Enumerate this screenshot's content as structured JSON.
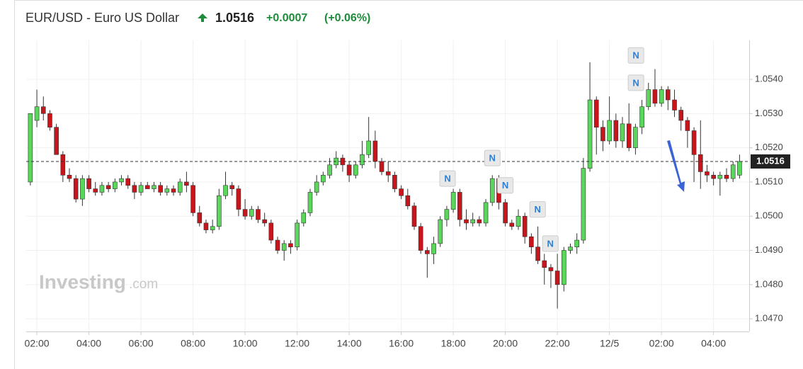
{
  "header": {
    "title": "EUR/USD - Euro US Dollar",
    "change": "+0.0007",
    "change_pct": "(+0.06%)"
  },
  "chart_data": {
    "type": "candlestick",
    "watermark": {
      "brand": "Investing",
      "suffix": ".com"
    },
    "last_price": 1.0516,
    "up_color": "#5ad65a",
    "down_color": "#c8151c",
    "xlim": [
      1.59,
      29.37
    ],
    "xticks": [
      {
        "value": 2,
        "label": "02:00"
      },
      {
        "value": 4,
        "label": "04:00"
      },
      {
        "value": 6,
        "label": "06:00"
      },
      {
        "value": 8,
        "label": "08:00"
      },
      {
        "value": 10,
        "label": "10:00"
      },
      {
        "value": 12,
        "label": "12:00"
      },
      {
        "value": 14,
        "label": "14:00"
      },
      {
        "value": 16,
        "label": "16:00"
      },
      {
        "value": 18,
        "label": "18:00"
      },
      {
        "value": 20,
        "label": "20:00"
      },
      {
        "value": 22,
        "label": "22:00"
      },
      {
        "value": 24,
        "label": "12/5"
      },
      {
        "value": 26,
        "label": "02:00"
      },
      {
        "value": 28,
        "label": "04:00"
      }
    ],
    "ylim": [
      1.04663,
      1.05514
    ],
    "yticks": [
      {
        "value": 1.047,
        "label": "1.0470"
      },
      {
        "value": 1.048,
        "label": "1.0480"
      },
      {
        "value": 1.049,
        "label": "1.0490"
      },
      {
        "value": 1.05,
        "label": "1.0500"
      },
      {
        "value": 1.051,
        "label": "1.0510"
      },
      {
        "value": 1.052,
        "label": "1.0520"
      },
      {
        "value": 1.053,
        "label": "1.0530"
      },
      {
        "value": 1.054,
        "label": "1.0540"
      }
    ],
    "grid": true,
    "news_markers": [
      {
        "label": "N",
        "x": 17.78,
        "y": 1.0511
      },
      {
        "label": "N",
        "x": 19.5,
        "y": 1.0517
      },
      {
        "label": "N",
        "x": 20.0,
        "y": 1.0509
      },
      {
        "label": "N",
        "x": 21.24,
        "y": 1.0502
      },
      {
        "label": "N",
        "x": 21.73,
        "y": 1.0492
      },
      {
        "label": "N",
        "x": 25.02,
        "y": 1.0547
      },
      {
        "label": "N",
        "x": 25.02,
        "y": 1.0539
      }
    ],
    "x": [
      1.75,
      2,
      2.25,
      2.5,
      2.75,
      3,
      3.25,
      3.5,
      3.75,
      4,
      4.25,
      4.5,
      4.75,
      5,
      5.25,
      5.5,
      5.75,
      6,
      6.25,
      6.5,
      6.75,
      7,
      7.25,
      7.5,
      7.75,
      8,
      8.25,
      8.5,
      8.75,
      9,
      9.25,
      9.5,
      9.75,
      10,
      10.25,
      10.5,
      10.75,
      11,
      11.25,
      11.5,
      11.75,
      12,
      12.25,
      12.5,
      12.75,
      13,
      13.25,
      13.5,
      13.75,
      14,
      14.25,
      14.5,
      14.75,
      15,
      15.25,
      15.5,
      15.75,
      16,
      16.25,
      16.5,
      16.75,
      17,
      17.25,
      17.5,
      17.75,
      18,
      18.25,
      18.5,
      18.75,
      19,
      19.25,
      19.5,
      19.75,
      20,
      20.25,
      20.5,
      20.75,
      21,
      21.25,
      21.5,
      21.75,
      22,
      22.25,
      22.5,
      22.75,
      23,
      23.25,
      23.5,
      23.75,
      24,
      24.25,
      24.5,
      24.75,
      25,
      25.25,
      25.5,
      25.75,
      26,
      26.25,
      26.5,
      26.75,
      27,
      27.25,
      27.5,
      27.75,
      28,
      28.25,
      28.5,
      28.75,
      29
    ],
    "open": [
      1.051,
      1.0528,
      1.0532,
      1.053,
      1.0526,
      1.0518,
      1.0512,
      1.0511,
      1.0505,
      1.0511,
      1.0508,
      1.0507,
      1.0509,
      1.0508,
      1.051,
      1.0511,
      1.0509,
      1.0507,
      1.0509,
      1.0508,
      1.0509,
      1.0507,
      1.0508,
      1.0507,
      1.051,
      1.0509,
      1.0501,
      1.0498,
      1.0496,
      1.0497,
      1.0506,
      1.0509,
      1.0508,
      1.0502,
      1.05,
      1.0502,
      1.0499,
      1.0498,
      1.0493,
      1.049,
      1.0492,
      1.0491,
      1.0498,
      1.0501,
      1.0507,
      1.051,
      1.0512,
      1.0515,
      1.0517,
      1.0515,
      1.0512,
      1.0515,
      1.0518,
      1.0522,
      1.0516,
      1.0513,
      1.0512,
      1.0508,
      1.0506,
      1.0503,
      1.0497,
      1.049,
      1.0489,
      1.0492,
      1.0499,
      1.0502,
      1.0507,
      1.0499,
      1.0498,
      1.0499,
      1.0498,
      1.0504,
      1.0511,
      1.0504,
      1.0498,
      1.0497,
      1.05,
      1.0494,
      1.0491,
      1.0487,
      1.0485,
      1.0484,
      1.048,
      1.049,
      1.0491,
      1.0493,
      1.0514,
      1.0534,
      1.0526,
      1.0522,
      1.0528,
      1.0522,
      1.0527,
      1.052,
      1.0526,
      1.0532,
      1.0537,
      1.0533,
      1.0537,
      1.0534,
      1.0531,
      1.0528,
      1.0525,
      1.0518,
      1.0513,
      1.0512,
      1.0511,
      1.0512,
      1.0511,
      1.0512
    ],
    "high": [
      1.053,
      1.0537,
      1.0535,
      1.0531,
      1.0527,
      1.0519,
      1.0514,
      1.0512,
      1.0512,
      1.0512,
      1.051,
      1.051,
      1.051,
      1.0511,
      1.0512,
      1.0512,
      1.051,
      1.051,
      1.051,
      1.051,
      1.051,
      1.0509,
      1.0509,
      1.0511,
      1.0513,
      1.051,
      1.0503,
      1.0499,
      1.0499,
      1.0508,
      1.0513,
      1.051,
      1.0509,
      1.0505,
      1.0503,
      1.0503,
      1.0501,
      1.0499,
      1.0494,
      1.0493,
      1.0493,
      1.0499,
      1.0502,
      1.0508,
      1.0512,
      1.0513,
      1.0517,
      1.0519,
      1.0518,
      1.0516,
      1.0516,
      1.0522,
      1.0529,
      1.0525,
      1.0517,
      1.0516,
      1.0513,
      1.0509,
      1.0508,
      1.0504,
      1.0498,
      1.0491,
      1.0494,
      1.05,
      1.0503,
      1.0508,
      1.0508,
      1.0502,
      1.0501,
      1.05,
      1.0505,
      1.0512,
      1.0512,
      1.0505,
      1.0499,
      1.0502,
      1.0501,
      1.0495,
      1.0497,
      1.0489,
      1.0486,
      1.0489,
      1.0491,
      1.0492,
      1.0495,
      1.0517,
      1.0545,
      1.0535,
      1.0528,
      1.0535,
      1.053,
      1.0529,
      1.0533,
      1.0527,
      1.0534,
      1.0539,
      1.0543,
      1.0538,
      1.0538,
      1.0537,
      1.0532,
      1.0529,
      1.0526,
      1.0528,
      1.0515,
      1.0513,
      1.0513,
      1.0514,
      1.0516,
      1.0518
    ],
    "low": [
      1.0509,
      1.0526,
      1.0528,
      1.0525,
      1.0518,
      1.051,
      1.051,
      1.0504,
      1.0503,
      1.0507,
      1.0506,
      1.0506,
      1.0507,
      1.0507,
      1.0509,
      1.0508,
      1.0505,
      1.0506,
      1.0508,
      1.0507,
      1.0506,
      1.0506,
      1.0506,
      1.0506,
      1.0507,
      1.05,
      1.0497,
      1.0495,
      1.0495,
      1.0496,
      1.0505,
      1.0506,
      1.05,
      1.0499,
      1.0499,
      1.0498,
      1.0497,
      1.0492,
      1.0489,
      1.0487,
      1.0489,
      1.049,
      1.0497,
      1.05,
      1.0506,
      1.0509,
      1.0511,
      1.0514,
      1.0513,
      1.051,
      1.0511,
      1.0514,
      1.0517,
      1.0514,
      1.0512,
      1.051,
      1.0507,
      1.0505,
      1.0502,
      1.0496,
      1.0489,
      1.0482,
      1.0486,
      1.0491,
      1.0497,
      1.0501,
      1.0497,
      1.0496,
      1.0497,
      1.0497,
      1.0497,
      1.0503,
      1.0502,
      1.0497,
      1.0496,
      1.0496,
      1.0492,
      1.0489,
      1.0486,
      1.048,
      1.0479,
      1.0473,
      1.0478,
      1.0489,
      1.0489,
      1.0492,
      1.0513,
      1.0518,
      1.0519,
      1.0521,
      1.052,
      1.052,
      1.0519,
      1.0518,
      1.0524,
      1.0531,
      1.0532,
      1.0532,
      1.0531,
      1.0529,
      1.0525,
      1.052,
      1.051,
      1.0508,
      1.051,
      1.0509,
      1.0506,
      1.051,
      1.051,
      1.0511
    ],
    "close": [
      1.053,
      1.0532,
      1.053,
      1.0526,
      1.0518,
      1.0512,
      1.0511,
      1.0505,
      1.0511,
      1.0508,
      1.0507,
      1.0509,
      1.0508,
      1.051,
      1.0511,
      1.0509,
      1.0507,
      1.0509,
      1.0508,
      1.0509,
      1.0507,
      1.0508,
      1.0507,
      1.051,
      1.0509,
      1.0501,
      1.0498,
      1.0496,
      1.0497,
      1.0506,
      1.0509,
      1.0508,
      1.0502,
      1.05,
      1.0502,
      1.0499,
      1.0498,
      1.0493,
      1.049,
      1.0492,
      1.0491,
      1.0498,
      1.0501,
      1.0507,
      1.051,
      1.0512,
      1.0515,
      1.0517,
      1.0515,
      1.0512,
      1.0515,
      1.0518,
      1.0522,
      1.0516,
      1.0513,
      1.0512,
      1.0508,
      1.0506,
      1.0503,
      1.0497,
      1.049,
      1.0489,
      1.0492,
      1.0499,
      1.0502,
      1.0507,
      1.0499,
      1.0498,
      1.0499,
      1.0498,
      1.0504,
      1.0511,
      1.0504,
      1.0498,
      1.0497,
      1.05,
      1.0494,
      1.0491,
      1.0487,
      1.0485,
      1.0484,
      1.048,
      1.049,
      1.0491,
      1.0493,
      1.0514,
      1.0534,
      1.0526,
      1.0522,
      1.0528,
      1.0522,
      1.0527,
      1.052,
      1.0526,
      1.0532,
      1.0537,
      1.0533,
      1.0537,
      1.0534,
      1.0531,
      1.0528,
      1.0525,
      1.0518,
      1.0513,
      1.0512,
      1.0511,
      1.0512,
      1.0511,
      1.0515,
      1.0516
    ]
  }
}
